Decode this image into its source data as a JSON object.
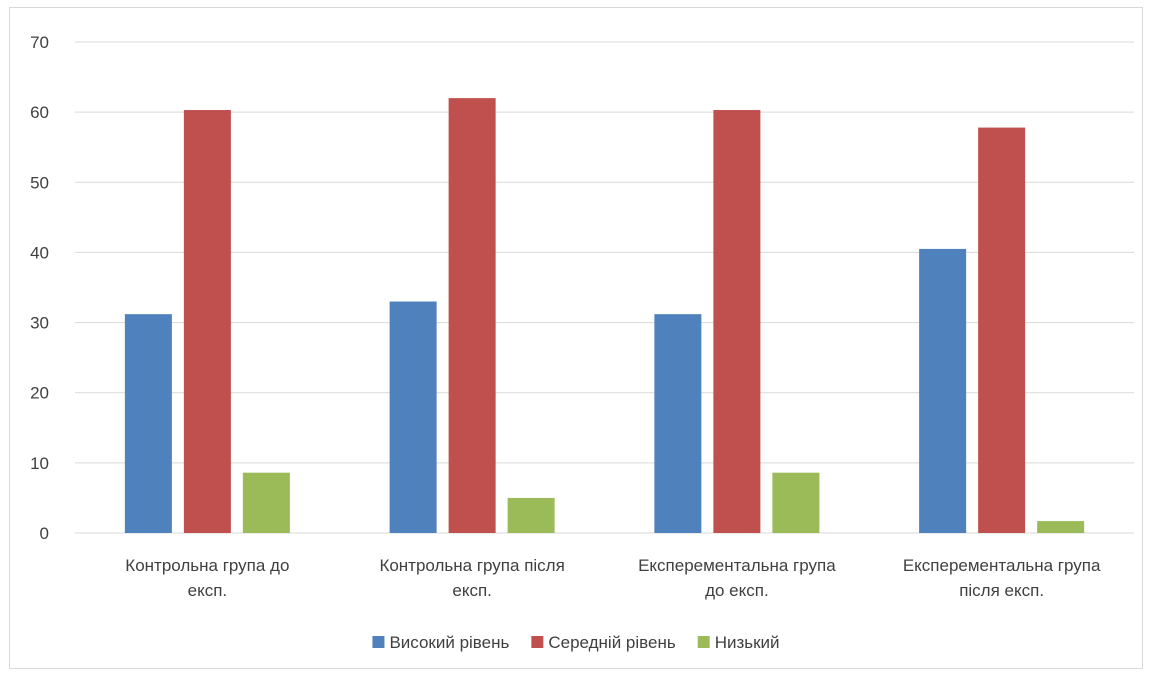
{
  "chart_data": {
    "type": "bar",
    "categories": [
      [
        "Контрольна група до",
        "експ."
      ],
      [
        "Контрольна група після",
        "експ."
      ],
      [
        "Експерементальна група",
        "до експ."
      ],
      [
        "Експерементальна група",
        "після експ."
      ]
    ],
    "series": [
      {
        "name": "Високий рівень",
        "values": [
          31.2,
          33.0,
          31.2,
          40.5
        ],
        "color": "#4f81bd"
      },
      {
        "name": "Середній рівень",
        "values": [
          60.3,
          62.0,
          60.3,
          57.8
        ],
        "color": "#c0504d"
      },
      {
        "name": "Низький",
        "values": [
          8.6,
          5.0,
          8.6,
          1.7
        ],
        "color": "#9bbb59"
      }
    ],
    "ylim": [
      0,
      70
    ],
    "yticks": [
      0,
      10,
      20,
      30,
      40,
      50,
      60,
      70
    ],
    "grid": true,
    "legend_position": "bottom",
    "gridline_color": "#d9d9d9"
  }
}
